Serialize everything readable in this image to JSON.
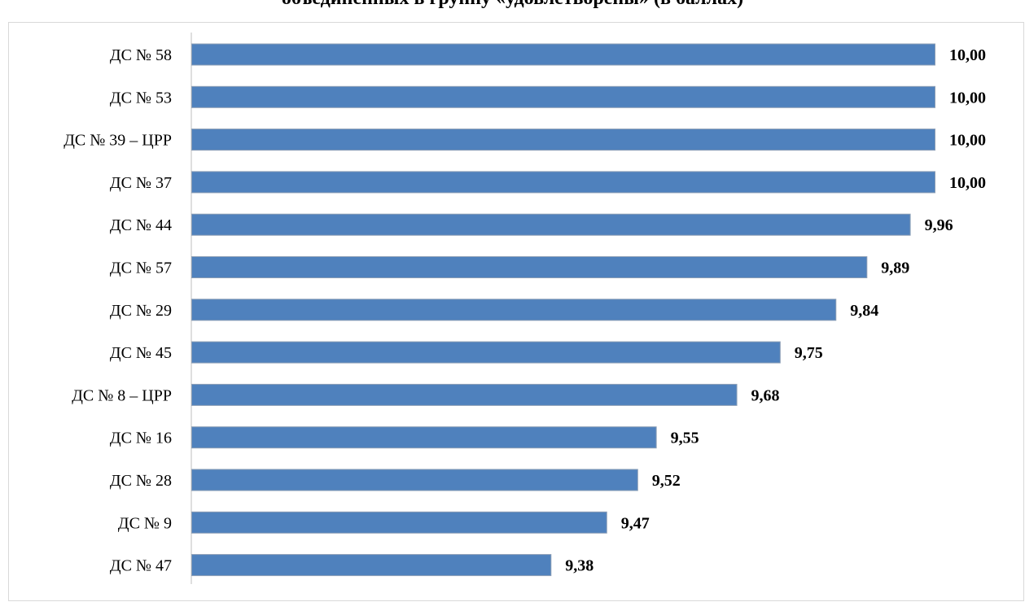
{
  "chart_data": {
    "type": "bar",
    "orientation": "horizontal",
    "title": "объединенных в группу «удовлетворены» (в баллах)",
    "categories": [
      "ДС № 58",
      "ДС № 53",
      "ДС № 39 – ЦРР",
      "ДС № 37",
      "ДС № 44",
      "ДС № 57",
      "ДС № 29",
      "ДС № 45",
      "ДС № 8 – ЦРР",
      "ДС № 16",
      "ДС № 28",
      "ДС № 9",
      "ДС № 47"
    ],
    "values": [
      10.0,
      10.0,
      10.0,
      10.0,
      9.96,
      9.89,
      9.84,
      9.75,
      9.68,
      9.55,
      9.52,
      9.47,
      9.38
    ],
    "value_labels": [
      "10,00",
      "10,00",
      "10,00",
      "10,00",
      "9,96",
      "9,89",
      "9,84",
      "9,75",
      "9,68",
      "9,55",
      "9,52",
      "9,47",
      "9,38"
    ],
    "bar_color": "#4f81bd",
    "bar_border_color": "#8a9db5",
    "xlim": [
      8.8,
      10.0
    ],
    "grid": false,
    "legend": "none"
  }
}
